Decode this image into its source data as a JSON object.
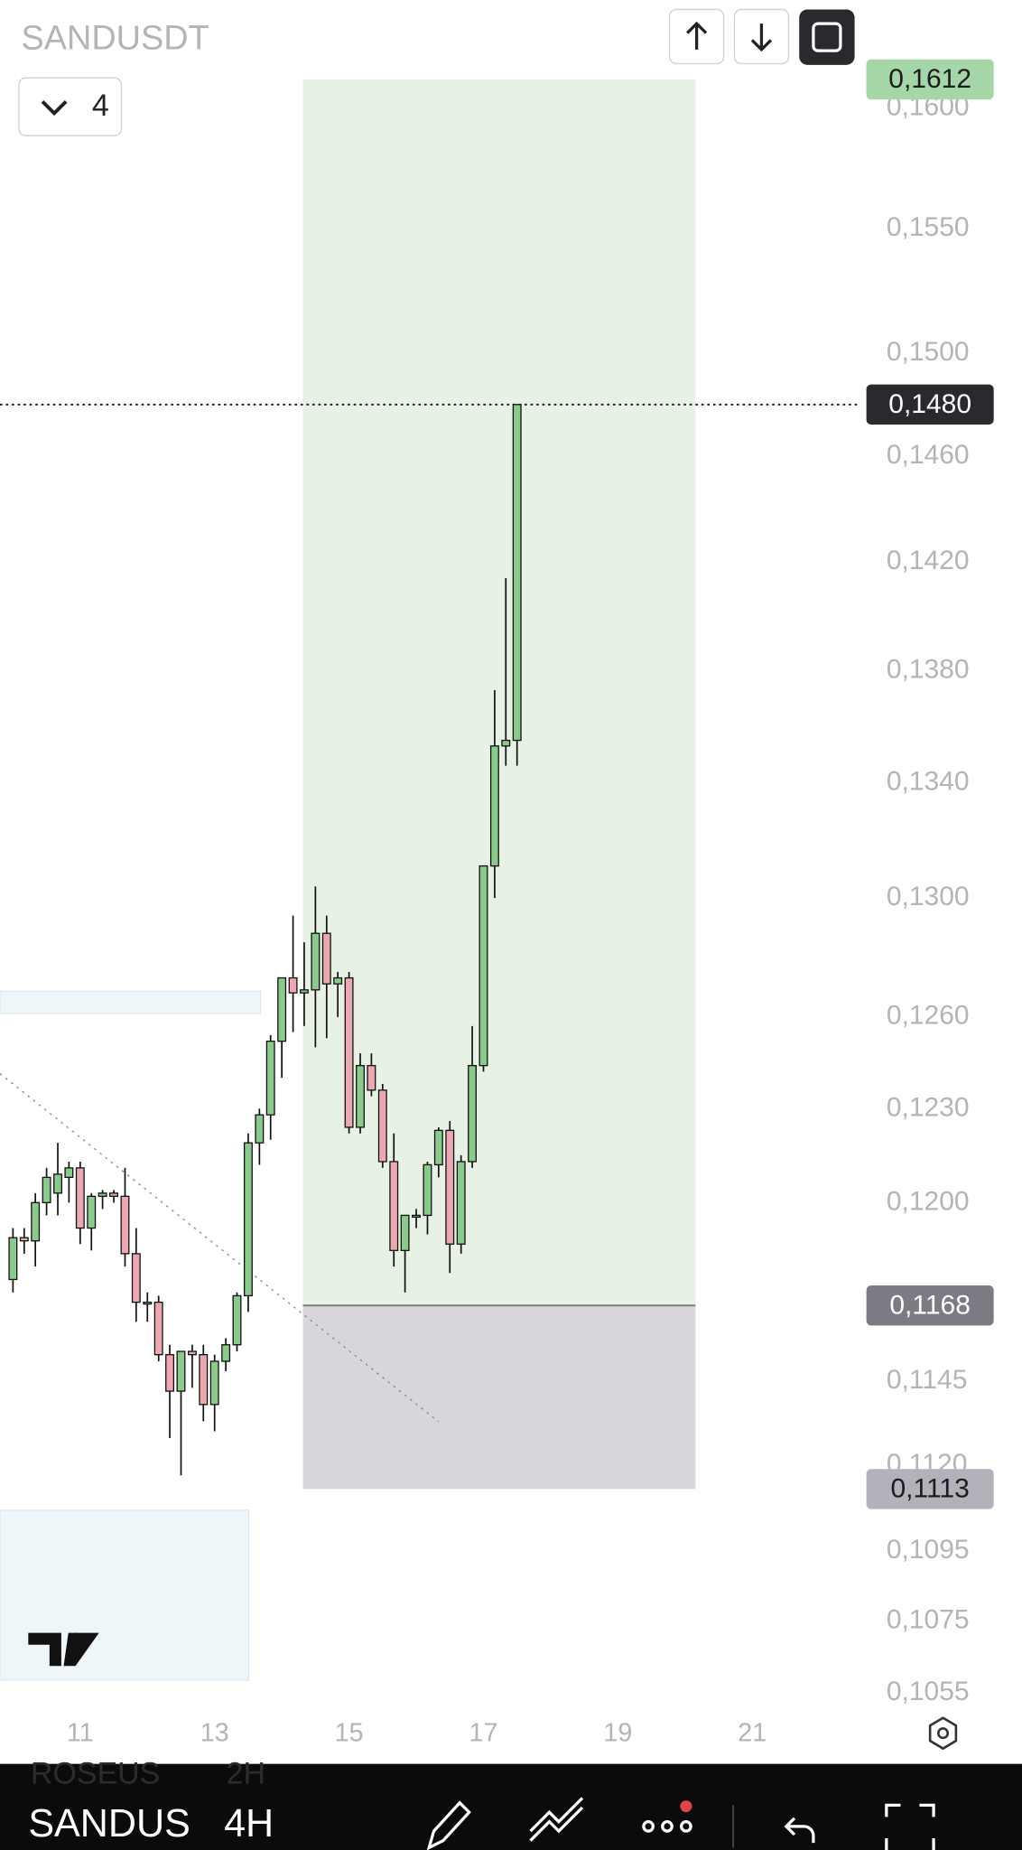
{
  "chart_data": {
    "type": "candlestick",
    "title": "SANDUSDT",
    "log_scale": true,
    "x": [
      10,
      10.167,
      10.333,
      10.5,
      10.667,
      10.833,
      11,
      11.167,
      11.333,
      11.5,
      11.667,
      11.833,
      12,
      12.167,
      12.333,
      12.5,
      12.667,
      12.833,
      13,
      13.167,
      13.333,
      13.5,
      13.667,
      13.833,
      14,
      14.167,
      14.333,
      14.5,
      14.667,
      14.833,
      15,
      15.167,
      15.333,
      15.5,
      15.667,
      15.833,
      16,
      16.167,
      16.333,
      16.5,
      16.667,
      16.833,
      17,
      17.167,
      17.333,
      17.5
    ],
    "open": [
      0.1176,
      0.1189,
      0.1188,
      0.12,
      0.1203,
      0.1208,
      0.1211,
      0.1192,
      0.1202,
      0.1203,
      0.1202,
      0.1184,
      0.1169,
      0.1169,
      0.1153,
      0.1142,
      0.1154,
      0.1153,
      0.1138,
      0.1151,
      0.1156,
      0.1171,
      0.1219,
      0.1228,
      0.1252,
      0.1273,
      0.1268,
      0.1269,
      0.1288,
      0.1271,
      0.1273,
      0.1224,
      0.1244,
      0.1236,
      0.1213,
      0.1185,
      0.1196,
      0.1196,
      0.1212,
      0.1223,
      0.1187,
      0.1213,
      0.1244,
      0.1311,
      0.1353,
      0.1355
    ],
    "high": [
      0.1192,
      0.1192,
      0.1203,
      0.1211,
      0.1219,
      0.1213,
      0.1213,
      0.1203,
      0.1204,
      0.1204,
      0.1211,
      0.1192,
      0.1172,
      0.1171,
      0.1156,
      0.1154,
      0.1156,
      0.1156,
      0.1153,
      0.1158,
      0.1172,
      0.1222,
      0.123,
      0.1254,
      0.1273,
      0.1294,
      0.1285,
      0.1304,
      0.1294,
      0.1275,
      0.1275,
      0.1248,
      0.1248,
      0.1238,
      0.1222,
      0.1196,
      0.1198,
      0.1213,
      0.1224,
      0.1226,
      0.1215,
      0.1257,
      0.1311,
      0.1373,
      0.1414,
      0.148
    ],
    "low": [
      0.1172,
      0.1184,
      0.118,
      0.1196,
      0.1196,
      0.12,
      0.1187,
      0.1185,
      0.1198,
      0.12,
      0.118,
      0.1163,
      0.1163,
      0.1151,
      0.1128,
      0.1117,
      0.1143,
      0.1133,
      0.113,
      0.1148,
      0.1154,
      0.1166,
      0.1212,
      0.122,
      0.124,
      0.1255,
      0.1257,
      0.125,
      0.1253,
      0.126,
      0.1222,
      0.1222,
      0.1234,
      0.1211,
      0.118,
      0.1172,
      0.1192,
      0.119,
      0.1208,
      0.1178,
      0.1184,
      0.1211,
      0.1242,
      0.13,
      0.1346,
      0.1346
    ],
    "close": [
      0.1189,
      0.1188,
      0.12,
      0.1208,
      0.1209,
      0.1211,
      0.1192,
      0.1202,
      0.1203,
      0.1202,
      0.1184,
      0.1169,
      0.1169,
      0.1153,
      0.1142,
      0.1154,
      0.1153,
      0.1138,
      0.1151,
      0.1156,
      0.1171,
      0.1219,
      0.1228,
      0.1252,
      0.1273,
      0.1268,
      0.1269,
      0.1288,
      0.1271,
      0.1273,
      0.1224,
      0.1244,
      0.1236,
      0.1213,
      0.1185,
      0.1196,
      0.1196,
      0.1212,
      0.1223,
      0.1187,
      0.1213,
      0.1244,
      0.1311,
      0.1353,
      0.1355,
      0.148
    ],
    "up_color": "#8cc98c",
    "down_color": "#eaa9b0",
    "xlim": [
      9.807,
      22.61
    ],
    "xticks": [
      11,
      13,
      15,
      17,
      19,
      21
    ],
    "ylim": [
      0.105,
      0.1646
    ],
    "yticks": [
      {
        "value": 0.16,
        "label": "0,1600"
      },
      {
        "value": 0.155,
        "label": "0,1550"
      },
      {
        "value": 0.15,
        "label": "0,1500"
      },
      {
        "value": 0.146,
        "label": "0,1460"
      },
      {
        "value": 0.142,
        "label": "0,1420"
      },
      {
        "value": 0.138,
        "label": "0,1380"
      },
      {
        "value": 0.134,
        "label": "0,1340"
      },
      {
        "value": 0.13,
        "label": "0,1300"
      },
      {
        "value": 0.126,
        "label": "0,1260"
      },
      {
        "value": 0.123,
        "label": "0,1230"
      },
      {
        "value": 0.12,
        "label": "0,1200"
      },
      {
        "value": 0.1145,
        "label": "0,1145"
      },
      {
        "value": 0.112,
        "label": "0,1120"
      },
      {
        "value": 0.1095,
        "label": "0,1095"
      },
      {
        "value": 0.1075,
        "label": "0,1075"
      },
      {
        "value": 0.1055,
        "label": "0,1055"
      }
    ],
    "price_labels": [
      {
        "value": 0.1612,
        "label": "0,1612",
        "color": "#a5d6a7",
        "text_color": "#1b1b1b"
      },
      {
        "value": 0.148,
        "label": "0,1480",
        "color": "#2a2a2e",
        "text_color": "#ffffff"
      },
      {
        "value": 0.1168,
        "label": "0,1168",
        "color": "#7b7b84",
        "text_color": "#ffffff"
      },
      {
        "value": 0.1113,
        "label": "0,1113",
        "color": "#b2b2ba",
        "text_color": "#1b1b1b"
      }
    ]
  },
  "ui": {
    "indicator_count": "4",
    "prev_symbol": "ROSEUS",
    "prev_interval": "2H",
    "symbol": "SANDUS",
    "interval": "4H"
  }
}
